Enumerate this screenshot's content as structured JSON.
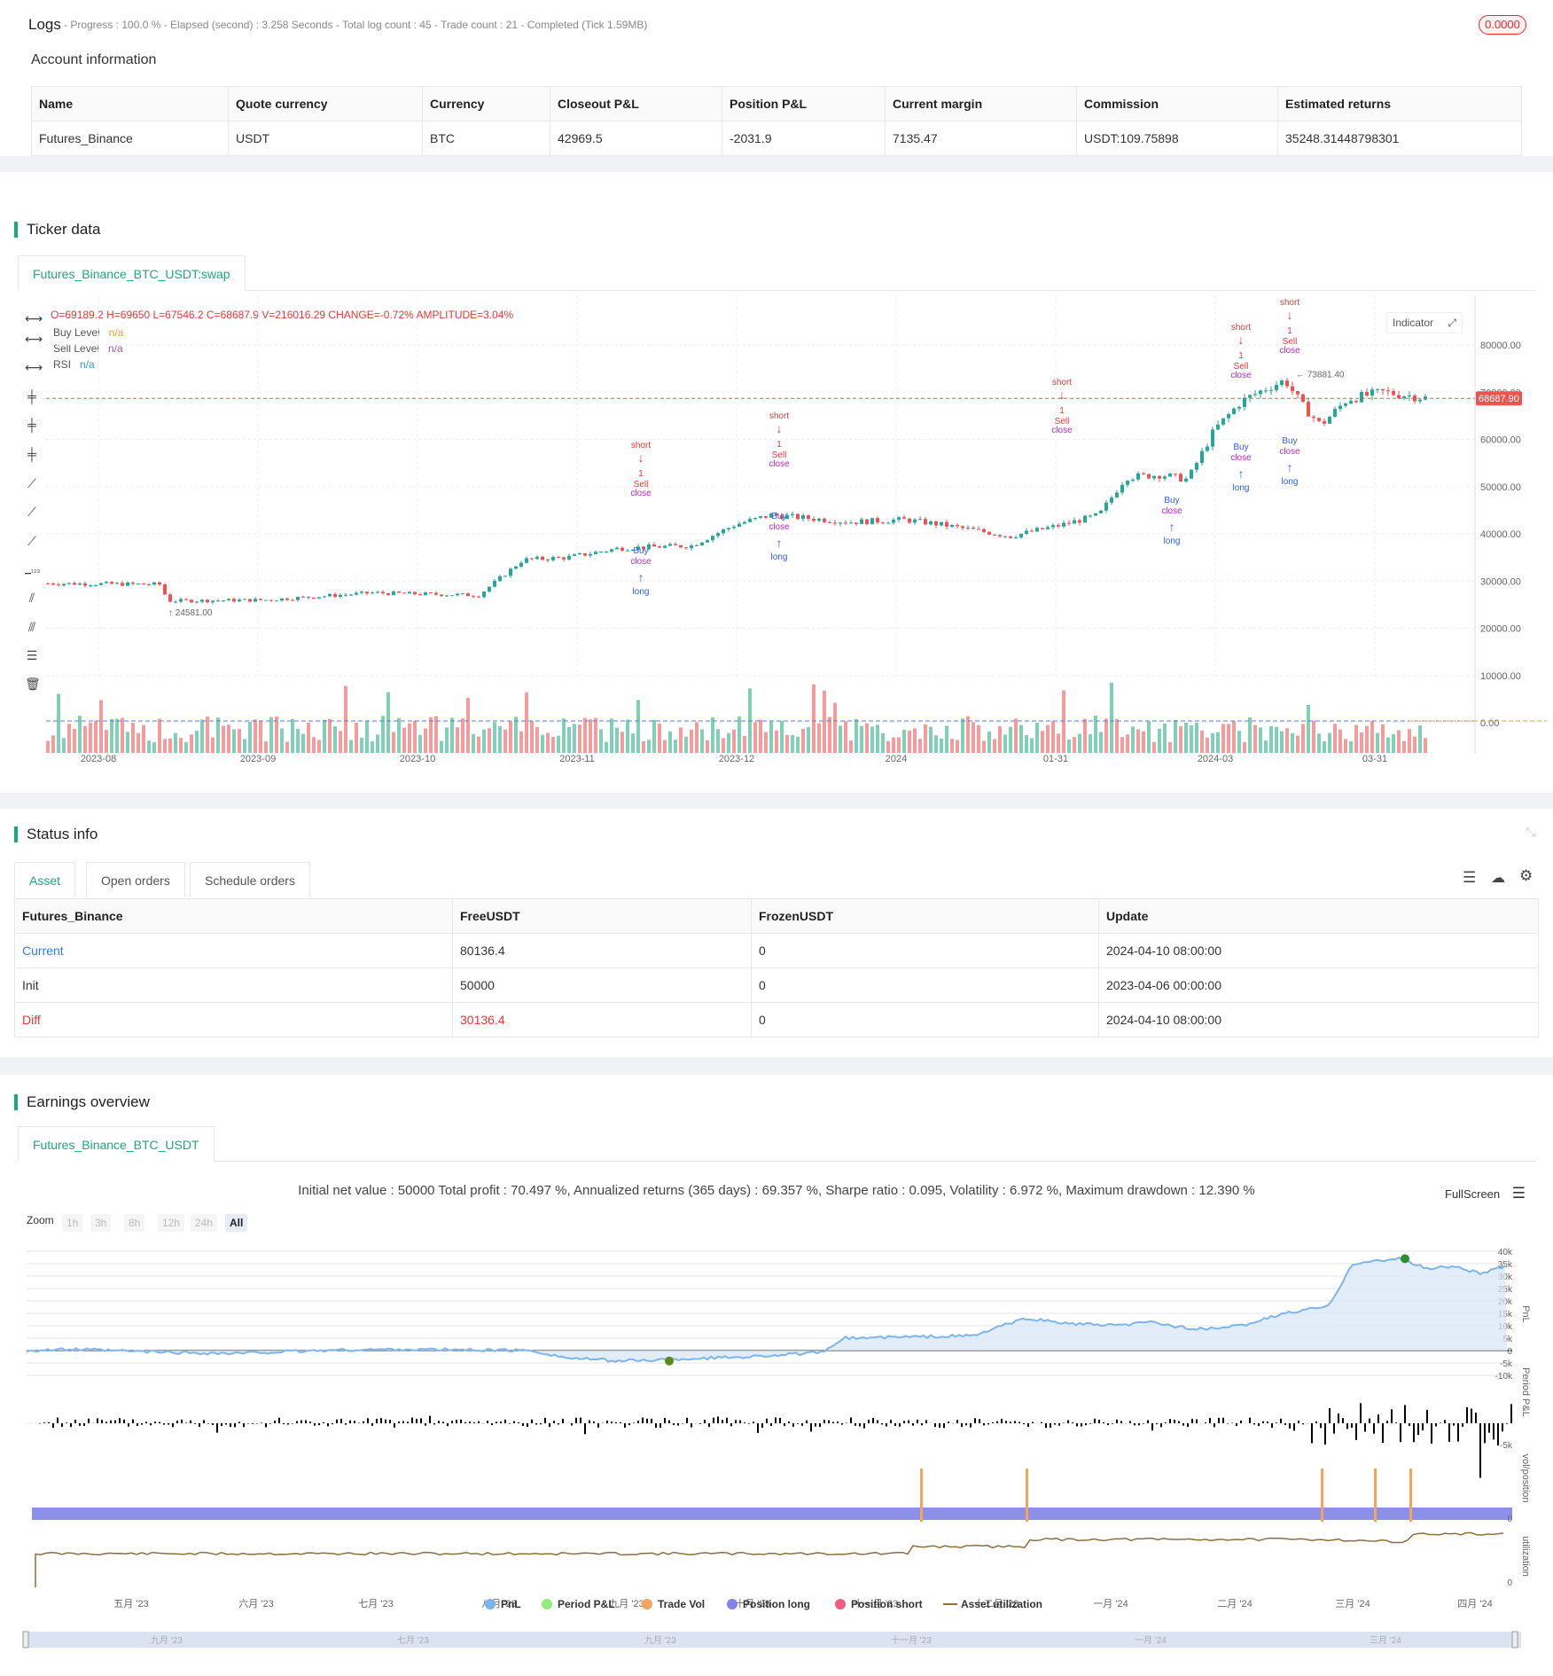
{
  "logs": {
    "title": "Logs",
    "status": "- Progress : 100.0 % - Elapsed (second) : 3.258 Seconds - Total log count : 45 - Trade count : 21 - Completed (Tick 1.59MB)",
    "badge": "0.0000"
  },
  "account": {
    "title": "Account information",
    "headers": [
      "Name",
      "Quote currency",
      "Currency",
      "Closeout P&L",
      "Position P&L",
      "Current margin",
      "Commission",
      "Estimated returns"
    ],
    "row": [
      "Futures_Binance",
      "USDT",
      "BTC",
      "42969.5",
      "-2031.9",
      "7135.47",
      "USDT:109.75898",
      "35248.31448798301"
    ]
  },
  "ticker": {
    "title": "Ticker data",
    "tab": "Futures_Binance_BTC_USDT:swap",
    "ohlc": {
      "O": "69189.2",
      "H": "69650",
      "L": "67546.2",
      "C": "68687.9",
      "V": "216016.29",
      "CHANGE": "-0.72%",
      "AMPLITUDE": "3.04%"
    },
    "legend": [
      {
        "label": "Buy Level",
        "value": "n/a",
        "color": "#f0a030"
      },
      {
        "label": "Sell Level",
        "value": "n/a",
        "color": "#9b59b6"
      },
      {
        "label": "RSI",
        "value": "n/a",
        "color": "#2d9cdb"
      }
    ],
    "indicator_btn": "Indicator",
    "last_price": "68687.90",
    "high_mark": "73881.40",
    "low_mark": "24581.00",
    "y_ticks": [
      "80000.00",
      "70000.00",
      "60000.00",
      "50000.00",
      "40000.00",
      "30000.00",
      "20000.00",
      "10000.00",
      "0.00"
    ],
    "x_ticks": [
      "2023-08",
      "2023-09",
      "2023-10",
      "2023-11",
      "2023-12",
      "2024",
      "01-31",
      "2024-03",
      "03-31"
    ],
    "signal_labels": {
      "short": "short",
      "long": "long",
      "buy": "Buy",
      "sell": "Sell",
      "close": "close",
      "one": "1"
    }
  },
  "status": {
    "title": "Status info",
    "tabs": [
      "Asset",
      "Open orders",
      "Schedule orders"
    ],
    "headers": [
      "Futures_Binance",
      "FreeUSDT",
      "FrozenUSDT",
      "Update"
    ],
    "rows": [
      [
        "Current",
        "80136.4",
        "0",
        "2024-04-10 08:00:00"
      ],
      [
        "Init",
        "50000",
        "0",
        "2023-04-06 00:00:00"
      ],
      [
        "Diff",
        "30136.4",
        "0",
        "2024-04-10 08:00:00"
      ]
    ]
  },
  "earnings": {
    "title": "Earnings overview",
    "tab": "Futures_Binance_BTC_USDT",
    "summary": "Initial net value : 50000 Total profit : 70.497 %, Annualized returns (365 days) : 69.357 %, Sharpe ratio : 0.095, Volatility : 6.972 %, Maximum drawdown : 12.390 %",
    "fullscreen": "FullScreen",
    "zoom_label": "Zoom",
    "zoom_opts": [
      "1h",
      "3h",
      "8h",
      "12h",
      "24h",
      "All"
    ],
    "pnl_ticks": [
      "40k",
      "35k",
      "30k",
      "25k",
      "20k",
      "15k",
      "10k",
      "5k",
      "0",
      "-5k",
      "-10k"
    ],
    "period_tick": "-5k",
    "zero_tick": "0",
    "axis_titles": [
      "PnL",
      "Period P&L",
      "vol/position",
      "utilization"
    ],
    "months": [
      "五月 '23",
      "六月 '23",
      "七月 '23",
      "八月 '23",
      "九月 '23",
      "十月 '23",
      "十一月 '23",
      "十二月 '23",
      "一月 '24",
      "二月 '24",
      "三月 '24",
      "四月 '24"
    ],
    "nav_months": [
      "九月 '23",
      "七月 '23",
      "九月 '23",
      "十一月 '23",
      "一月 '24",
      "三月 '24"
    ],
    "legend": [
      {
        "label": "PnL",
        "color": "#7cb5ec"
      },
      {
        "label": "Period P&L",
        "color": "#90ed7d"
      },
      {
        "label": "Trade Vol",
        "color": "#f7a35c"
      },
      {
        "label": "Position long",
        "color": "#8085e9"
      },
      {
        "label": "Position short",
        "color": "#f15c80"
      },
      {
        "label": "Asset utilization",
        "color": "#8d6e3a"
      }
    ]
  }
}
